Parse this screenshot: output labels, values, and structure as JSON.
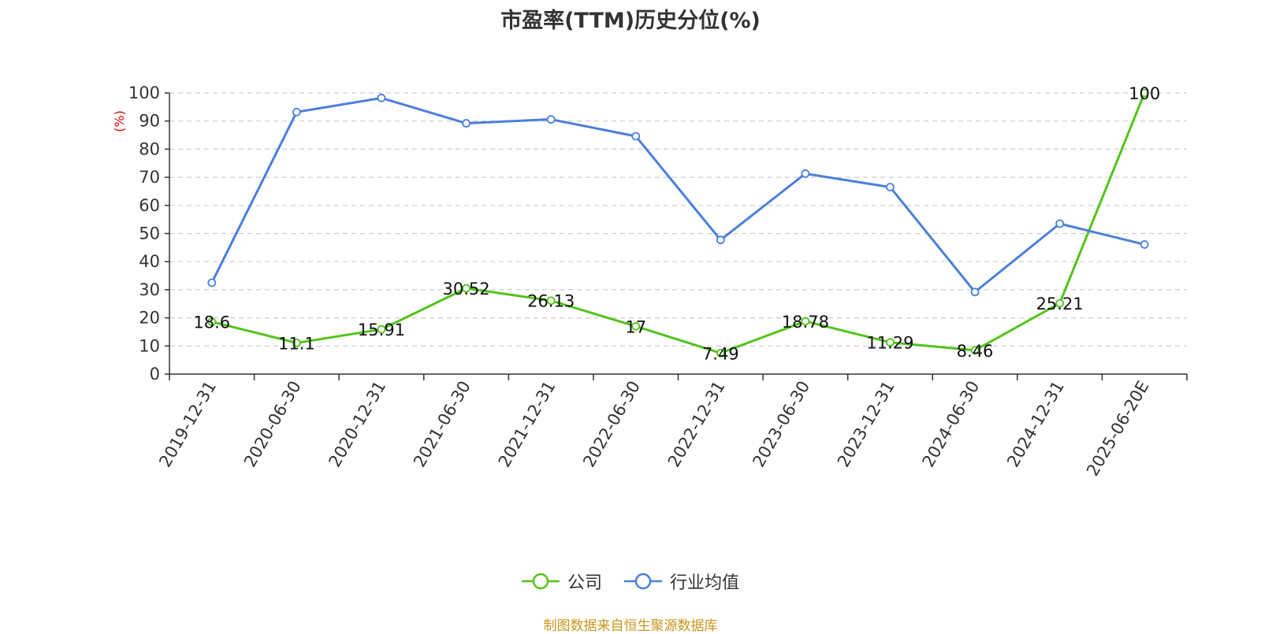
{
  "chart_data": {
    "type": "line",
    "title": "市盈率(TTM)历史分位(%)",
    "ylabel": "(%)",
    "xlabel": "",
    "ylim": [
      0,
      100
    ],
    "yticks": [
      0,
      10,
      20,
      30,
      40,
      50,
      60,
      70,
      80,
      90,
      100
    ],
    "grid": true,
    "legend_position": "bottom",
    "categories": [
      "2019-12-31",
      "2020-06-30",
      "2020-12-31",
      "2021-06-30",
      "2021-12-31",
      "2022-06-30",
      "2022-12-31",
      "2023-06-30",
      "2023-12-31",
      "2024-06-30",
      "2024-12-31",
      "2025-06-20E"
    ],
    "series": [
      {
        "name": "公司",
        "color": "#52c41a",
        "show_labels": true,
        "values": [
          18.6,
          11.1,
          15.91,
          30.52,
          26.13,
          17,
          7.49,
          18.78,
          11.29,
          8.46,
          25.21,
          100
        ]
      },
      {
        "name": "行业均值",
        "color": "#4a7fdc",
        "show_labels": false,
        "values": [
          32.5,
          93.2,
          98.2,
          89.2,
          90.6,
          84.6,
          47.7,
          71.3,
          66.5,
          29.2,
          53.5,
          46.1
        ]
      }
    ]
  },
  "source_note": "制图数据来自恒生聚源数据库",
  "colors": {
    "grid": "#cccccc",
    "axis": "#333333",
    "ylabel": "#e00000",
    "source": "#c8961e"
  }
}
